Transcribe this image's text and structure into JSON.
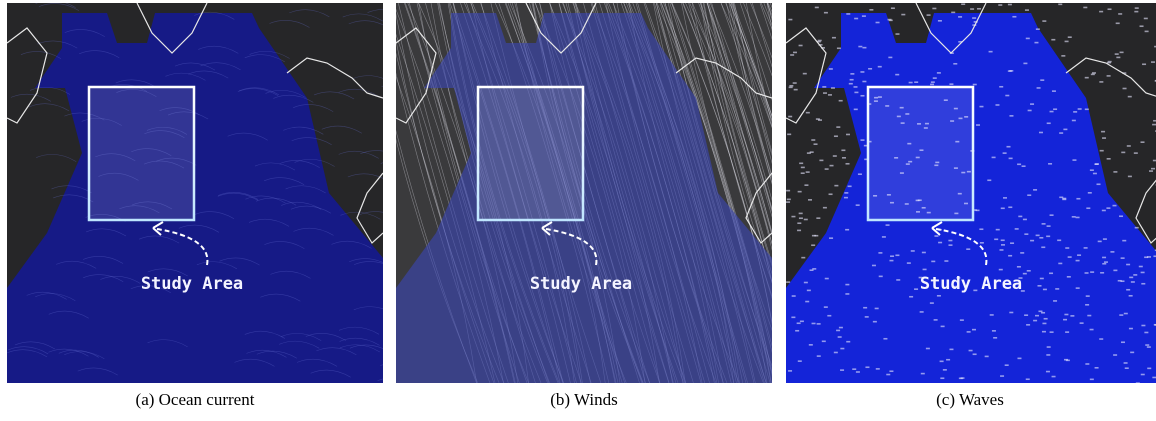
{
  "panels": [
    {
      "caption": "(a) Ocean current",
      "label": "Study Area"
    },
    {
      "caption": "(b) Winds",
      "label": "Study Area"
    },
    {
      "caption": "(c) Waves",
      "label": "Study Area"
    }
  ]
}
